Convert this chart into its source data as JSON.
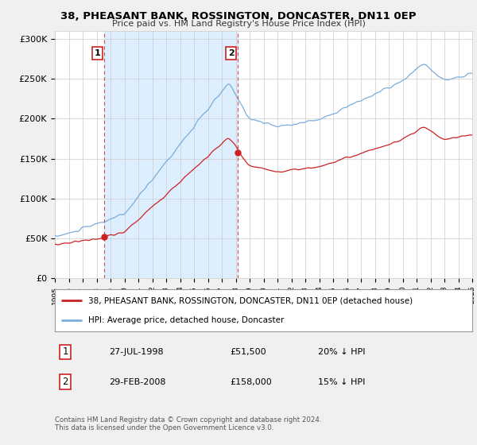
{
  "title": "38, PHEASANT BANK, ROSSINGTON, DONCASTER, DN11 0EP",
  "subtitle": "Price paid vs. HM Land Registry's House Price Index (HPI)",
  "background_color": "#f0f0f0",
  "plot_background": "#ffffff",
  "shaded_region_color": "#ddeeff",
  "ylim": [
    0,
    310000
  ],
  "yticks": [
    0,
    50000,
    100000,
    150000,
    200000,
    250000,
    300000
  ],
  "ytick_labels": [
    "£0",
    "£50K",
    "£100K",
    "£150K",
    "£200K",
    "£250K",
    "£300K"
  ],
  "xstart_year": 1995,
  "xend_year": 2025,
  "hpi_color": "#7aaddb",
  "price_color": "#cc2222",
  "marker1_date": 1998.57,
  "marker1_price": 51500,
  "marker2_date": 2008.17,
  "marker2_price": 158000,
  "marker_vline_color": "#cc3333",
  "legend_line1": "38, PHEASANT BANK, ROSSINGTON, DONCASTER, DN11 0EP (detached house)",
  "legend_line2": "HPI: Average price, detached house, Doncaster",
  "table_row1_num": "1",
  "table_row1_date": "27-JUL-1998",
  "table_row1_price": "£51,500",
  "table_row1_hpi": "20% ↓ HPI",
  "table_row2_num": "2",
  "table_row2_date": "29-FEB-2008",
  "table_row2_price": "£158,000",
  "table_row2_hpi": "15% ↓ HPI",
  "footer": "Contains HM Land Registry data © Crown copyright and database right 2024.\nThis data is licensed under the Open Government Licence v3.0."
}
